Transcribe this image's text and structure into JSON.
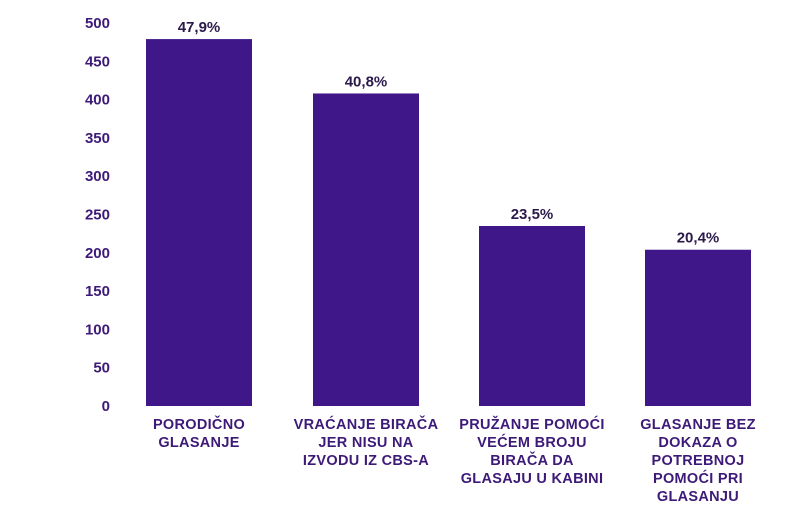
{
  "chart_data": {
    "type": "bar",
    "title": "",
    "xlabel": "",
    "ylabel": "",
    "ylim": [
      0,
      500
    ],
    "yticks": [
      0,
      50,
      100,
      150,
      200,
      250,
      300,
      350,
      400,
      450,
      500
    ],
    "grid": false,
    "categories": [
      [
        "PORODIČNO",
        "GLASANJE"
      ],
      [
        "VRAĆANJE BIRAČA",
        "JER NISU NA",
        "IZVODU IZ CBS-A"
      ],
      [
        "PRUŽANJE POMOĆI",
        "VEĆEM BROJU",
        "BIRAČA DA",
        "GLASAJU U KABINI"
      ],
      [
        "GLASANJE BEZ",
        "DOKAZA O",
        "POTREBNOJ",
        "POMOĆI PRI",
        "GLASANJU"
      ]
    ],
    "values": [
      479,
      408,
      235,
      204
    ],
    "data_labels": [
      "47,9%",
      "40,8%",
      "23,5%",
      "20,4%"
    ],
    "colors": {
      "bar": "#3f1789",
      "axis_text": "#3d1a78",
      "label_text": "#2a1a4a"
    }
  }
}
